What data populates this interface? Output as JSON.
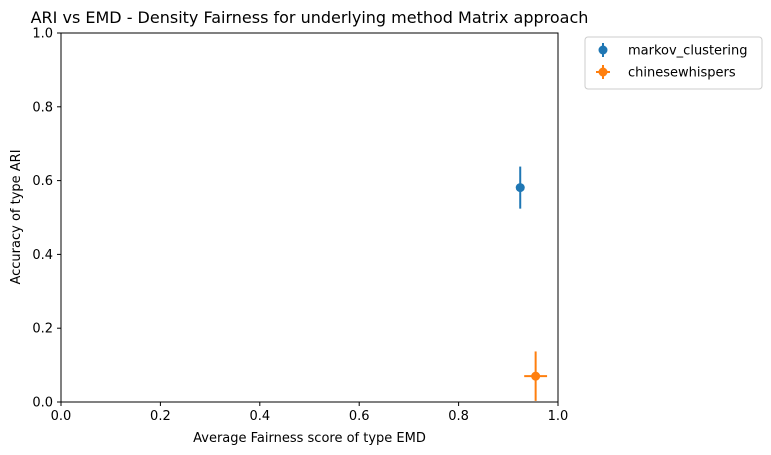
{
  "chart_data": {
    "type": "scatter",
    "title": "ARI vs EMD - Density Fairness for underlying method Matrix approach",
    "xlabel": "Average Fairness score of type EMD",
    "ylabel": "Accuracy of type ARI",
    "xlim": [
      0.0,
      1.0
    ],
    "ylim": [
      0.0,
      1.0
    ],
    "xticks": [
      "0.0",
      "0.2",
      "0.4",
      "0.6",
      "0.8",
      "1.0"
    ],
    "yticks": [
      "0.0",
      "0.2",
      "0.4",
      "0.6",
      "0.8",
      "1.0"
    ],
    "grid": false,
    "legend_position": "outside top-right",
    "series": [
      {
        "name": "markov_clustering",
        "color": "#1f77b4",
        "x": 0.924,
        "y": 0.581,
        "xerr": 0.0,
        "yerr": 0.057
      },
      {
        "name": "chinesewhispers",
        "color": "#ff7f0e",
        "x": 0.955,
        "y": 0.07,
        "xerr": 0.023,
        "yerr": 0.067
      }
    ]
  }
}
